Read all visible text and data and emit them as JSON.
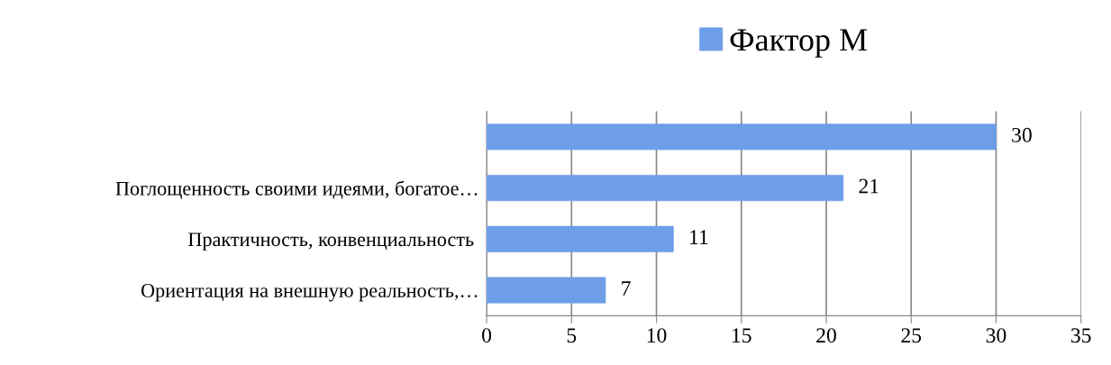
{
  "chart_data": {
    "type": "bar",
    "orientation": "horizontal",
    "categories": [
      null,
      "Поглощенность своими идеями, богатое…",
      "Практичность, конвенциальность ",
      "Ориентация на внешную реальность,…"
    ],
    "series": [
      {
        "name": "Фактор М",
        "color": "#6f9ee8",
        "values": [
          30,
          21,
          11,
          7
        ]
      }
    ],
    "xlim": [
      0,
      35
    ],
    "xticks": [
      0,
      5,
      10,
      15,
      20,
      25,
      30,
      35
    ],
    "grid": "x",
    "legend": "top",
    "data_labels": true
  }
}
